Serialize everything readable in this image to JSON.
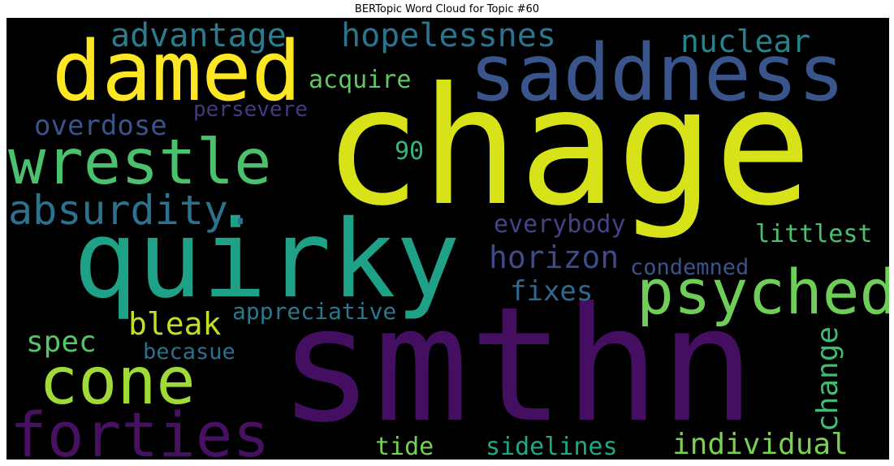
{
  "title": "BERTopic Word Cloud for Topic #60",
  "background": "#000000",
  "words": [
    {
      "text": "chage",
      "color": "#d8e219"
    },
    {
      "text": "smthn",
      "color": "#440f61"
    },
    {
      "text": "quirky",
      "color": "#1fa187"
    },
    {
      "text": "saddness",
      "color": "#39558c"
    },
    {
      "text": "damed",
      "color": "#fde725"
    },
    {
      "text": "wrestle",
      "color": "#4ac16d"
    },
    {
      "text": "psyched",
      "color": "#6ece58"
    },
    {
      "text": "cone",
      "color": "#a0da39"
    },
    {
      "text": "forties",
      "color": "#471063"
    },
    {
      "text": "absurdity.",
      "color": "#2c728e"
    },
    {
      "text": "advantage",
      "color": "#287d8e"
    },
    {
      "text": "hopelessnes",
      "color": "#2c738e"
    },
    {
      "text": "nuclear",
      "color": "#25838e"
    },
    {
      "text": "acquire",
      "color": "#5ec962"
    },
    {
      "text": "persevere",
      "color": "#443983"
    },
    {
      "text": "overdose",
      "color": "#3b528b"
    },
    {
      "text": "90",
      "color": "#35b779"
    },
    {
      "text": "everybody",
      "color": "#414487"
    },
    {
      "text": "littlest",
      "color": "#4ac16d"
    },
    {
      "text": "horizon",
      "color": "#3e4a89"
    },
    {
      "text": "condemned",
      "color": "#3b528b"
    },
    {
      "text": "fixes",
      "color": "#31688e"
    },
    {
      "text": "bleak",
      "color": "#c2df23"
    },
    {
      "text": "appreciative",
      "color": "#2a788e"
    },
    {
      "text": "spec",
      "color": "#54c568"
    },
    {
      "text": "becasue",
      "color": "#2d708e"
    },
    {
      "text": "change",
      "color": "#3fbc73"
    },
    {
      "text": "tide",
      "color": "#75d054"
    },
    {
      "text": "sidelines",
      "color": "#22a785"
    },
    {
      "text": "individual",
      "color": "#7ad151"
    }
  ]
}
